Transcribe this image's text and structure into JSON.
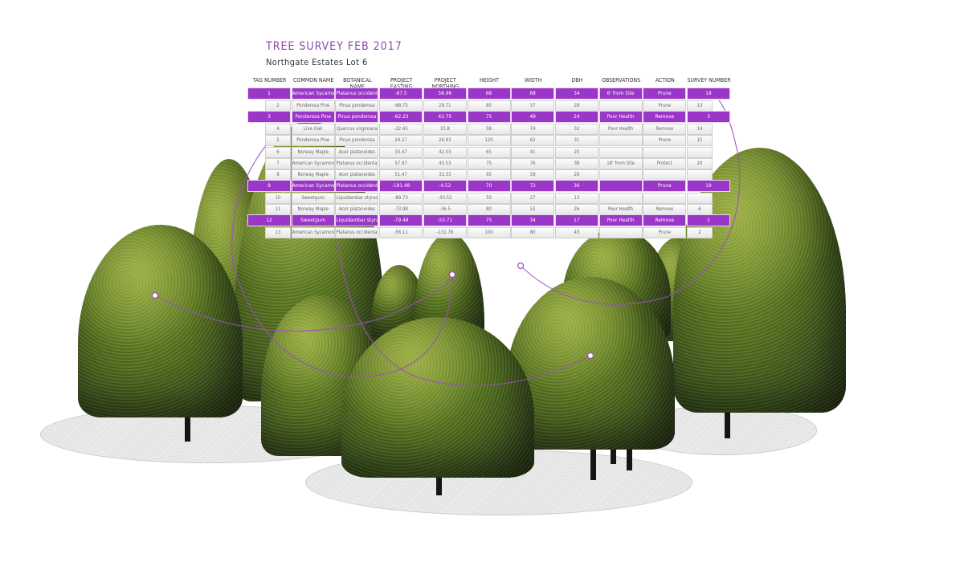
{
  "title": "TREE SURVEY FEB 2017",
  "subtitle": "Northgate Estates Lot 6",
  "colors": {
    "highlight": "#9a36c8",
    "title": "#8e4aa6",
    "foliage": "#55731f"
  },
  "table": {
    "columns": [
      "TAG NUMBER",
      "COMMON NAME",
      "BOTANICAL NAME",
      "PROJECT EASTING",
      "PROJECT NORTHING",
      "HEIGHT",
      "WIDTH",
      "DBH",
      "OBSERVATIONS",
      "ACTION",
      "SURVEY NUMBER"
    ],
    "rows": [
      {
        "highlight": true,
        "cells": [
          "1",
          "American Sycamore",
          "Platanus occidentalis",
          "-87.5",
          "58.96",
          "68",
          "68",
          "34",
          "6' from Site",
          "Prune",
          "18"
        ]
      },
      {
        "highlight": false,
        "cells": [
          "2",
          "Ponderosa Pine",
          "Pinus ponderosa",
          "-68.75",
          "29.71",
          "85",
          "57",
          "28",
          "",
          "Prune",
          "13"
        ]
      },
      {
        "highlight": true,
        "cells": [
          "3",
          "Ponderosa Pine",
          "Pinus ponderosa",
          "-62.23",
          "42.75",
          "75",
          "49",
          "24",
          "Poor Health",
          "Remove",
          "3"
        ]
      },
      {
        "highlight": false,
        "cells": [
          "4",
          "Live Oak",
          "Quercus virginiana",
          "-22.45",
          "33.8",
          "58",
          "74",
          "32",
          "Poor Health",
          "Remove",
          "14"
        ]
      },
      {
        "highlight": false,
        "cells": [
          "5",
          "Ponderosa Pine",
          "Pinus ponderosa",
          "24.27",
          "26.93",
          "120",
          "62",
          "31",
          "",
          "Prune",
          "15"
        ]
      },
      {
        "highlight": false,
        "cells": [
          "6",
          "Norway Maple",
          "Acer platanoides",
          "33.47",
          "42.03",
          "65",
          "41",
          "20",
          "",
          "",
          ""
        ]
      },
      {
        "highlight": false,
        "cells": [
          "7",
          "American Sycamore",
          "Platanus occidentalis",
          "57.97",
          "43.53",
          "75",
          "76",
          "38",
          "18' from Site",
          "Protect",
          "20"
        ]
      },
      {
        "highlight": false,
        "cells": [
          "8",
          "Norway Maple",
          "Acer platanoides",
          "51.47",
          "33.33",
          "95",
          "59",
          "29",
          "",
          "",
          ""
        ]
      },
      {
        "highlight": true,
        "cells": [
          "9",
          "American Sycamore",
          "Platanus occidentalis",
          "-181.48",
          "-4.52",
          "70",
          "72",
          "36",
          "",
          "Prune",
          "19"
        ]
      },
      {
        "highlight": false,
        "cells": [
          "10",
          "Sweetgum",
          "Liquidambar styraciflua",
          "-89.73",
          "-30.52",
          "50",
          "27",
          "13",
          "",
          "",
          ""
        ]
      },
      {
        "highlight": false,
        "cells": [
          "11",
          "Norway Maple",
          "Acer platanoides",
          "-73.98",
          "-36.5",
          "80",
          "52",
          "26",
          "Poor Health",
          "Remove",
          "6"
        ]
      },
      {
        "highlight": true,
        "cells": [
          "12",
          "Sweetgum",
          "Liquidambar styraciflua",
          "-79.48",
          "-53.71",
          "75",
          "34",
          "17",
          "Poor Health",
          "Remove",
          "1"
        ]
      },
      {
        "highlight": false,
        "cells": [
          "13",
          "American Sycamore",
          "Platanus occidentalis",
          "-56.11",
          "-131.78",
          "100",
          "80",
          "43",
          "",
          "Prune",
          "2"
        ]
      }
    ]
  }
}
